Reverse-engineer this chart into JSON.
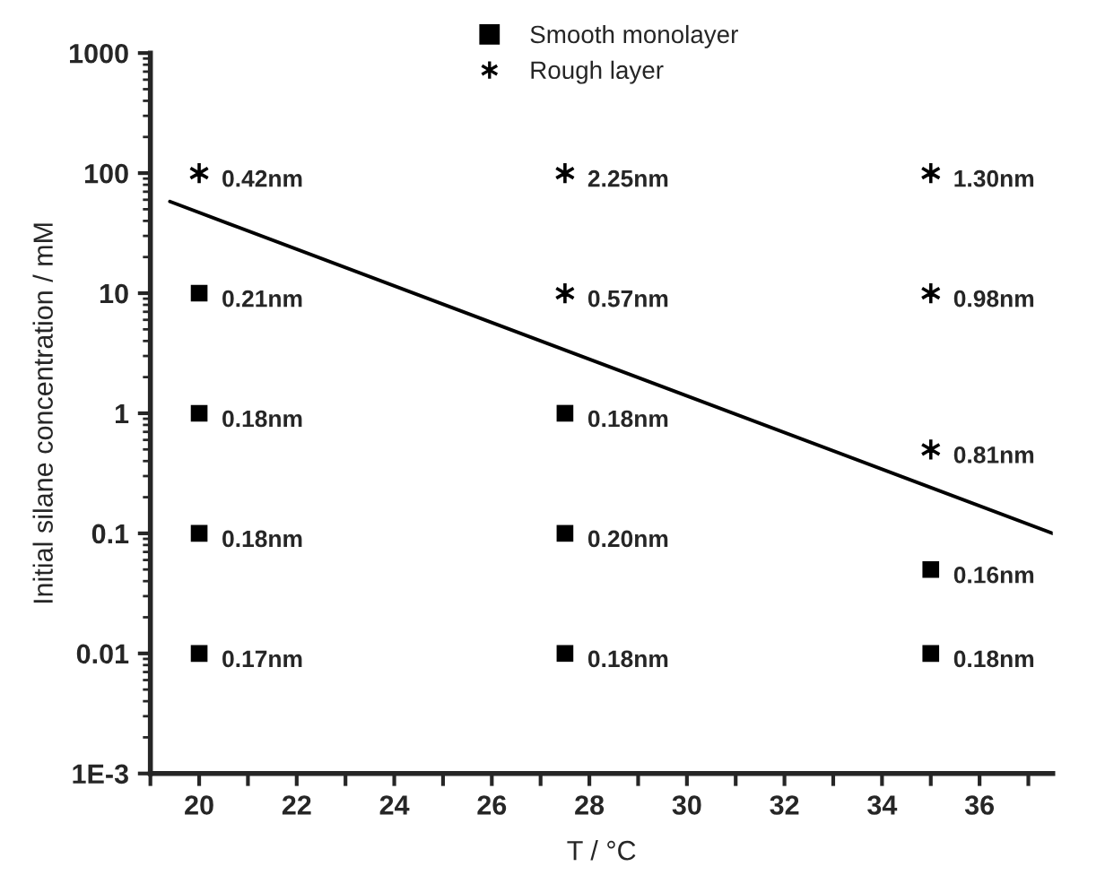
{
  "chart_data": {
    "type": "scatter",
    "xlabel": "T / °C",
    "ylabel": "Initial silane concentration / mM",
    "log": "y",
    "xlim": [
      19.0,
      37.5
    ],
    "ylim": [
      0.001,
      1000
    ],
    "xticks": [
      {
        "value": 19,
        "label": null
      },
      20,
      {
        "value": 21,
        "label": null
      },
      22,
      {
        "value": 23,
        "label": null
      },
      24,
      {
        "value": 25,
        "label": null
      },
      26,
      {
        "value": 27,
        "label": null
      },
      28,
      {
        "value": 29,
        "label": null
      },
      30,
      {
        "value": 31,
        "label": null
      },
      32,
      {
        "value": 33,
        "label": null
      },
      34,
      {
        "value": 35,
        "label": null
      },
      36,
      {
        "value": 37,
        "label": null
      }
    ],
    "yticks": [
      {
        "value": 0.001,
        "label": "1E-3"
      },
      0.01,
      0.1,
      1,
      10,
      100,
      1000
    ],
    "grid": false,
    "legend": "top",
    "series": [
      {
        "name": "Smooth monolayer",
        "marker": "square",
        "color": "#000000",
        "x": [
          20,
          20,
          20,
          20,
          27.5,
          27.5,
          27.5,
          35,
          35
        ],
        "values": [
          10,
          1,
          0.1,
          0.01,
          1,
          0.1,
          0.01,
          0.05,
          0.01
        ]
      },
      {
        "name": "Rough layer",
        "marker": "cross",
        "color": "#000000",
        "x": [
          20,
          27.5,
          27.5,
          35,
          35,
          35
        ],
        "values": [
          100,
          100,
          10,
          100,
          10,
          0.5
        ]
      },
      {
        "type": "line",
        "marker": "none",
        "line_style": "solid",
        "color": "#000000",
        "x": [
          19.4,
          37.5
        ],
        "values": [
          58,
          0.1
        ]
      }
    ],
    "annotations": [
      {
        "text": "0.42nm",
        "x": 20,
        "y": 100
      },
      {
        "text": "0.21nm",
        "x": 20,
        "y": 10
      },
      {
        "text": "0.18nm",
        "x": 20,
        "y": 1
      },
      {
        "text": "0.18nm",
        "x": 20,
        "y": 0.1
      },
      {
        "text": "0.17nm",
        "x": 20,
        "y": 0.01
      },
      {
        "text": "2.25nm",
        "x": 27.5,
        "y": 100
      },
      {
        "text": "0.57nm",
        "x": 27.5,
        "y": 10
      },
      {
        "text": "0.18nm",
        "x": 27.5,
        "y": 1
      },
      {
        "text": "0.20nm",
        "x": 27.5,
        "y": 0.1
      },
      {
        "text": "0.18nm",
        "x": 27.5,
        "y": 0.01
      },
      {
        "text": "1.30nm",
        "x": 35,
        "y": 100
      },
      {
        "text": "0.98nm",
        "x": 35,
        "y": 10
      },
      {
        "text": "0.81nm",
        "x": 35,
        "y": 0.5
      },
      {
        "text": "0.16nm",
        "x": 35,
        "y": 0.05
      },
      {
        "text": "0.18nm",
        "x": 35,
        "y": 0.01
      }
    ]
  }
}
